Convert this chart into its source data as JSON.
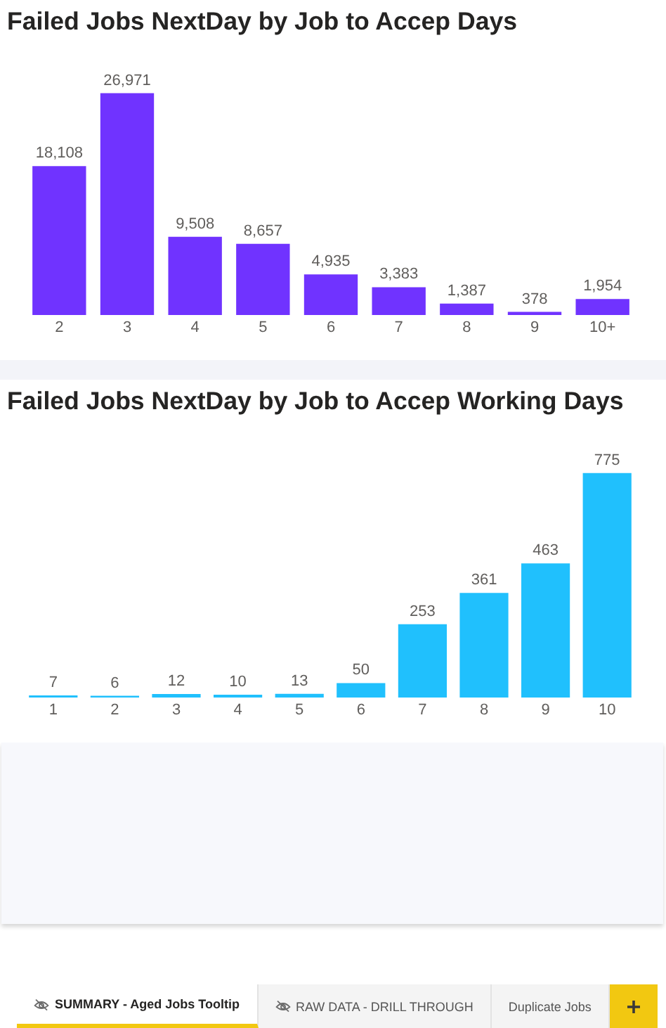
{
  "chart_data": [
    {
      "type": "bar",
      "title": "Failed Jobs NextDay by Job to Accep Days",
      "categories": [
        "2",
        "3",
        "4",
        "5",
        "6",
        "7",
        "8",
        "9",
        "10+"
      ],
      "values": [
        18108,
        26971,
        9508,
        8657,
        4935,
        3383,
        1387,
        378,
        1954
      ],
      "value_labels": [
        "18,108",
        "26,971",
        "9,508",
        "8,657",
        "4,935",
        "3,383",
        "1,387",
        "378",
        "1,954"
      ],
      "color": "#7033ff",
      "tick_labels": "x"
    },
    {
      "type": "bar",
      "title": "Failed Jobs NextDay by Job to Accep Working Days",
      "categories": [
        "1",
        "2",
        "3",
        "4",
        "5",
        "6",
        "7",
        "8",
        "9",
        "10"
      ],
      "values": [
        7,
        6,
        12,
        10,
        13,
        50,
        253,
        361,
        463,
        775
      ],
      "color": "#20c0fd",
      "data_labels": true,
      "tick_labels": "x"
    },
    {
      "type": "other",
      "annotations": [
        "SUMMARY - Aged Jobs Tooltip",
        "RAW DATA - DRILL THROUGH",
        "Duplicate Jobs"
      ]
    }
  ]
}
